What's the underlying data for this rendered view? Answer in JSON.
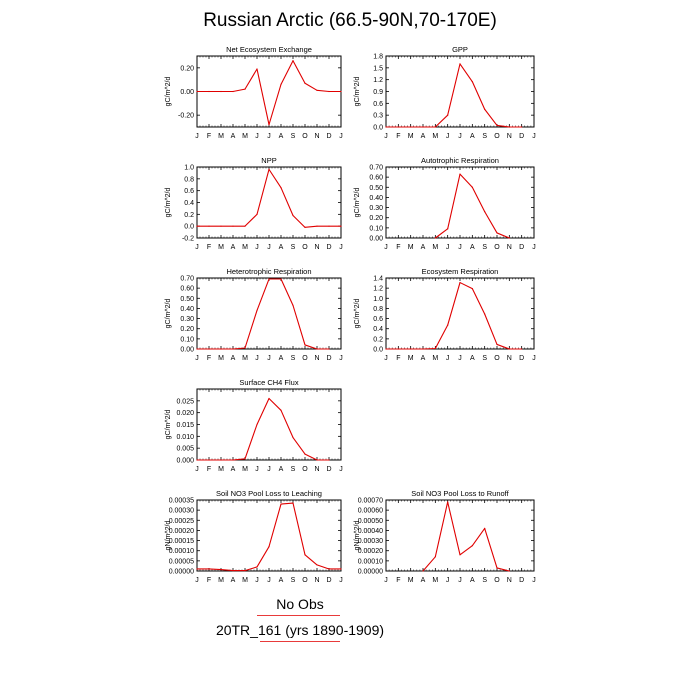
{
  "title": "Russian Arctic (66.5-90N,70-170E)",
  "colors": {
    "series": "#e00000",
    "axis": "#000000"
  },
  "months": [
    "J",
    "F",
    "M",
    "A",
    "M",
    "J",
    "J",
    "A",
    "S",
    "O",
    "N",
    "D",
    "J"
  ],
  "legend": {
    "obs_label": "No Obs",
    "model_label": "20TR_161 (yrs 1890-1909)"
  },
  "chart_data": [
    {
      "type": "line",
      "title": "Net Ecosystem Exchange",
      "ylabel": "gC/m^2/d",
      "ylim": [
        -0.3,
        0.3
      ],
      "yticks": [
        -0.2,
        0.0,
        0.2
      ],
      "ytick_labels": [
        "-0.20",
        "0.00",
        "0.20"
      ],
      "x": [
        1,
        2,
        3,
        4,
        5,
        6,
        7,
        8,
        9,
        10,
        11,
        12,
        13
      ],
      "values": [
        0.0,
        0.0,
        0.0,
        0.0,
        0.02,
        0.19,
        -0.28,
        0.06,
        0.26,
        0.07,
        0.01,
        0.0,
        0.0
      ]
    },
    {
      "type": "line",
      "title": "GPP",
      "ylabel": "gC/m^2/d",
      "ylim": [
        0,
        1.8
      ],
      "yticks": [
        0,
        0.3,
        0.6,
        0.9,
        1.2,
        1.5,
        1.8
      ],
      "ytick_labels": [
        "0.0",
        "0.3",
        "0.6",
        "0.9",
        "1.2",
        "1.5",
        "1.8"
      ],
      "x": [
        1,
        2,
        3,
        4,
        5,
        6,
        7,
        8,
        9,
        10,
        11,
        12
      ],
      "values": [
        0.0,
        0.0,
        0.0,
        0.0,
        0.0,
        0.3,
        1.6,
        1.15,
        0.45,
        0.04,
        0.0,
        0.0
      ]
    },
    {
      "type": "line",
      "title": "NPP",
      "ylabel": "gC/m^2/d",
      "ylim": [
        -0.2,
        1.0
      ],
      "yticks": [
        -0.2,
        0.0,
        0.2,
        0.4,
        0.6,
        0.8,
        1.0
      ],
      "ytick_labels": [
        "-0.2",
        "0.0",
        "0.2",
        "0.4",
        "0.6",
        "0.8",
        "1.0"
      ],
      "x": [
        1,
        2,
        3,
        4,
        5,
        6,
        7,
        8,
        9,
        10,
        11,
        12,
        13
      ],
      "values": [
        0.0,
        0.0,
        0.0,
        0.0,
        0.0,
        0.2,
        0.96,
        0.65,
        0.18,
        -0.02,
        0.0,
        0.0,
        0.0
      ]
    },
    {
      "type": "line",
      "title": "Autotrophic Respiration",
      "ylabel": "gC/m^2/d",
      "ylim": [
        0,
        0.7
      ],
      "yticks": [
        0,
        0.1,
        0.2,
        0.3,
        0.4,
        0.5,
        0.6,
        0.7
      ],
      "ytick_labels": [
        "0.00",
        "0.10",
        "0.20",
        "0.30",
        "0.40",
        "0.50",
        "0.60",
        "0.70"
      ],
      "x": [
        5,
        6,
        7,
        8,
        9,
        10,
        11
      ],
      "values": [
        0.0,
        0.09,
        0.63,
        0.5,
        0.26,
        0.05,
        0.0
      ]
    },
    {
      "type": "line",
      "title": "Heterotrophic Respiration",
      "ylabel": "gC/m^2/d",
      "ylim": [
        0,
        0.7
      ],
      "yticks": [
        0,
        0.1,
        0.2,
        0.3,
        0.4,
        0.5,
        0.6,
        0.7
      ],
      "ytick_labels": [
        "0.00",
        "0.10",
        "0.20",
        "0.30",
        "0.40",
        "0.50",
        "0.60",
        "0.70"
      ],
      "x": [
        1,
        2,
        3,
        4,
        5,
        6,
        7,
        8,
        9,
        10,
        11,
        12
      ],
      "values": [
        0.0,
        0.0,
        0.0,
        0.0,
        0.01,
        0.38,
        0.69,
        0.69,
        0.43,
        0.04,
        0.0,
        0.0
      ]
    },
    {
      "type": "line",
      "title": "Ecosystem Respiration",
      "ylabel": "gC/m^2/d",
      "ylim": [
        0,
        1.4
      ],
      "yticks": [
        0,
        0.2,
        0.4,
        0.6,
        0.8,
        1.0,
        1.2,
        1.4
      ],
      "ytick_labels": [
        "0.0",
        "0.2",
        "0.4",
        "0.6",
        "0.8",
        "1.0",
        "1.2",
        "1.4"
      ],
      "x": [
        1,
        2,
        3,
        4,
        5,
        6,
        7,
        8,
        9,
        10,
        11,
        12
      ],
      "values": [
        0.0,
        0.0,
        0.0,
        0.0,
        0.01,
        0.47,
        1.31,
        1.19,
        0.69,
        0.09,
        0.0,
        0.0
      ]
    },
    {
      "type": "line",
      "title": "Surface CH4 Flux",
      "ylabel": "gC/m^2/d",
      "ylim": [
        0,
        0.03
      ],
      "yticks": [
        0,
        0.005,
        0.01,
        0.015,
        0.02,
        0.025
      ],
      "ytick_labels": [
        "0.000",
        "0.005",
        "0.010",
        "0.015",
        "0.020",
        "0.025"
      ],
      "x": [
        1,
        2,
        3,
        4,
        5,
        6,
        7,
        8,
        9,
        10,
        11,
        12
      ],
      "values": [
        0.0,
        0.0,
        0.0,
        0.0,
        0.0005,
        0.015,
        0.026,
        0.021,
        0.0095,
        0.0025,
        0.0,
        0.0
      ]
    },
    {
      "type": "line",
      "title": "Soil NO3 Pool Loss to Leaching",
      "ylabel": "gN/m^2/d",
      "ylim": [
        0,
        0.00035
      ],
      "yticks": [
        0,
        5e-05,
        0.0001,
        0.00015,
        0.0002,
        0.00025,
        0.0003,
        0.00035
      ],
      "ytick_labels": [
        "0.00000",
        "0.00005",
        "0.00010",
        "0.00015",
        "0.00020",
        "0.00025",
        "0.00030",
        "0.00035"
      ],
      "x": [
        1,
        2,
        3,
        4,
        5,
        6,
        7,
        8,
        9,
        10,
        11,
        12,
        13
      ],
      "values": [
        1e-05,
        1e-05,
        7e-06,
        2e-06,
        2e-06,
        2e-05,
        0.00012,
        0.00033,
        0.000335,
        8e-05,
        3e-05,
        1e-05,
        1e-05
      ]
    },
    {
      "type": "line",
      "title": "Soil NO3 Pool Loss to Runoff",
      "ylabel": "gN/m^2/d",
      "ylim": [
        0,
        0.0007
      ],
      "yticks": [
        0,
        0.0001,
        0.0002,
        0.0003,
        0.0004,
        0.0005,
        0.0006,
        0.0007
      ],
      "ytick_labels": [
        "0.00000",
        "0.00010",
        "0.00020",
        "0.00030",
        "0.00040",
        "0.00050",
        "0.00060",
        "0.00070"
      ],
      "x": [
        4,
        5,
        6,
        7,
        8,
        9,
        10,
        11
      ],
      "values": [
        0.0,
        0.00014,
        0.00068,
        0.00016,
        0.00025,
        0.00042,
        3e-05,
        0.0
      ]
    }
  ]
}
